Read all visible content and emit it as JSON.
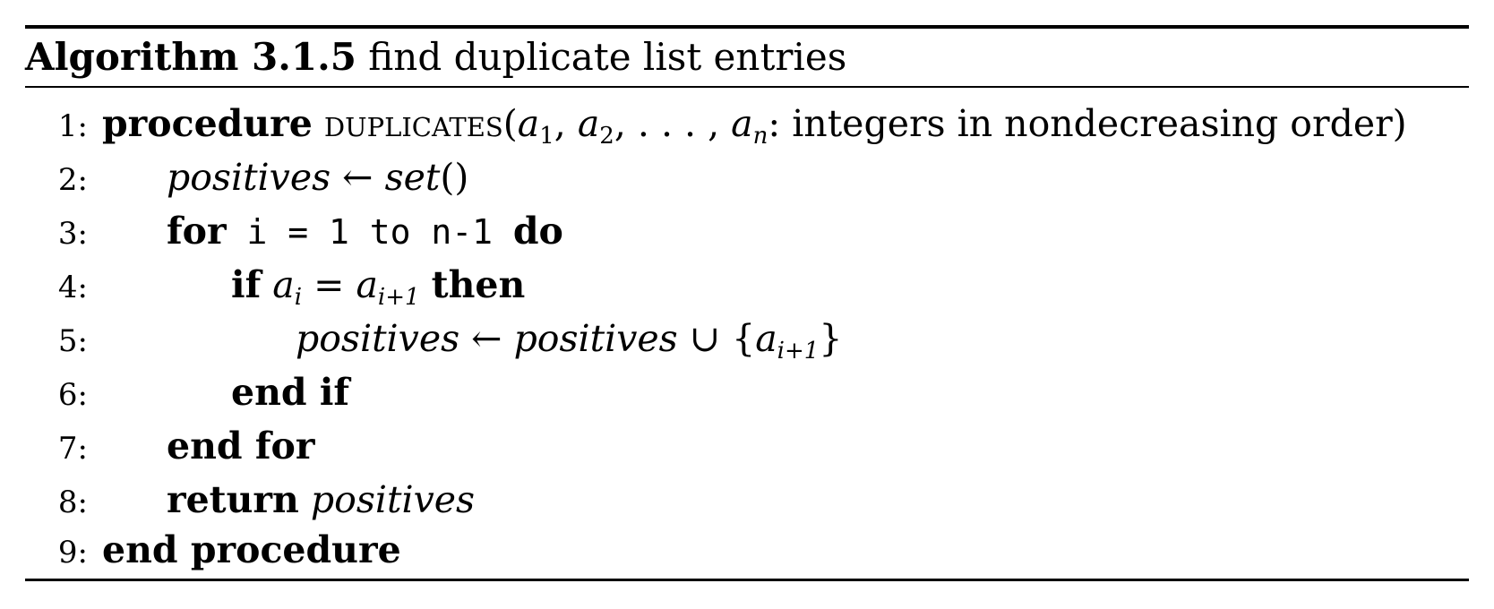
{
  "algorithm": {
    "label": "Algorithm 3.1.5",
    "title": "find duplicate list entries"
  },
  "lines": {
    "l1": {
      "num": "1:",
      "kw_procedure": "procedure",
      "proc_name": "duplicates",
      "params_open": "(",
      "a": "a",
      "s1": "1",
      "sep1": ", ",
      "s2": "2",
      "sep2": ", . . . , ",
      "sn": "n",
      "params_rest": ": integers in nondecreasing order)"
    },
    "l2": {
      "num": "2:",
      "var": "positives",
      "arrow": " ← ",
      "call": "set",
      "parens": "()"
    },
    "l3": {
      "num": "3:",
      "kw_for": "for",
      "code": " i = 1 to n-1 ",
      "kw_do": "do"
    },
    "l4": {
      "num": "4:",
      "kw_if": "if",
      "a1": "a",
      "sub_i": "i",
      "eq": " = ",
      "a2": "a",
      "sub_i1": "i+1",
      "kw_then": "then"
    },
    "l5": {
      "num": "5:",
      "var1": "positives",
      "arrow": " ← ",
      "var2": "positives",
      "union": " ∪ {",
      "a": "a",
      "sub": "i+1",
      "close": "}"
    },
    "l6": {
      "num": "6:",
      "kw": "end if"
    },
    "l7": {
      "num": "7:",
      "kw": "end for"
    },
    "l8": {
      "num": "8:",
      "kw": "return",
      "var": "positives"
    },
    "l9": {
      "num": "9:",
      "kw": "end procedure"
    }
  }
}
